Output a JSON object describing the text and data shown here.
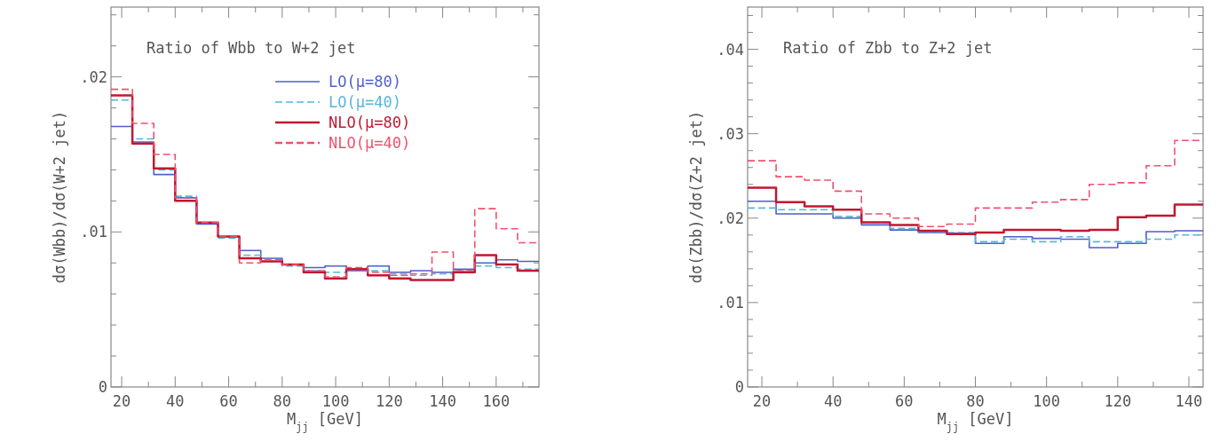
{
  "chart_data": [
    {
      "type": "histogram",
      "title": "Ratio of Wbb to W+2 jet",
      "xlabel": "M$_{jj}$ [GeV]",
      "ylabel": "dσ(Wbb)/dσ(W+2 jet)",
      "bins": [
        16,
        24,
        32,
        40,
        48,
        56,
        64,
        72,
        80,
        88,
        96,
        104,
        112,
        120,
        128,
        136,
        144,
        152,
        160,
        168,
        176
      ],
      "series": [
        {
          "name": "LO(μ=80)",
          "color": "#4f5fc8",
          "line_style": "solid",
          "values": [
            0.0168,
            0.0158,
            0.0137,
            0.0122,
            0.0105,
            0.0097,
            0.0088,
            0.0083,
            0.0079,
            0.0077,
            0.0078,
            0.0075,
            0.0078,
            0.0074,
            0.0075,
            0.0074,
            0.0076,
            0.008,
            0.0082,
            0.0081
          ]
        },
        {
          "name": "LO(μ=40)",
          "color": "#58b4dc",
          "line_style": "dashed",
          "values": [
            0.0185,
            0.016,
            0.014,
            0.0123,
            0.0106,
            0.0096,
            0.0085,
            0.0081,
            0.0078,
            0.0075,
            0.0074,
            0.0076,
            0.0075,
            0.0073,
            0.0072,
            0.0073,
            0.0075,
            0.0078,
            0.0077,
            0.0076
          ]
        },
        {
          "name": "NLO(μ=80)",
          "color": "#c01830",
          "line_style": "solid",
          "values": [
            0.0188,
            0.0157,
            0.0141,
            0.012,
            0.0106,
            0.0097,
            0.0083,
            0.0081,
            0.0079,
            0.0074,
            0.007,
            0.0076,
            0.0072,
            0.007,
            0.0069,
            0.0069,
            0.0074,
            0.0085,
            0.0079,
            0.0075
          ]
        },
        {
          "name": "NLO(μ=40)",
          "color": "#f0506e",
          "line_style": "dashed",
          "values": [
            0.0192,
            0.017,
            0.015,
            0.0122,
            0.0106,
            0.0097,
            0.008,
            0.0082,
            0.0079,
            0.0075,
            0.0071,
            0.0077,
            0.0074,
            0.0072,
            0.0073,
            0.0087,
            0.0075,
            0.0115,
            0.0102,
            0.0093
          ]
        }
      ],
      "xlim": [
        16,
        176
      ],
      "ylim": [
        0,
        0.0245
      ],
      "xticks": [
        20,
        {
          "value": 30,
          "label": null
        },
        40,
        {
          "value": 50,
          "label": null
        },
        60,
        {
          "value": 70,
          "label": null
        },
        80,
        {
          "value": 90,
          "label": null
        },
        100,
        {
          "value": 110,
          "label": null
        },
        120,
        {
          "value": 130,
          "label": null
        },
        140,
        {
          "value": 150,
          "label": null
        },
        160,
        {
          "value": 170,
          "label": null
        }
      ],
      "yticks": [
        0,
        {
          "value": 0.002,
          "label": null
        },
        {
          "value": 0.004,
          "label": null
        },
        {
          "value": 0.006,
          "label": null
        },
        {
          "value": 0.008,
          "label": null
        },
        {
          "value": 0.01,
          "label": ".01"
        },
        {
          "value": 0.012,
          "label": null
        },
        {
          "value": 0.014,
          "label": null
        },
        {
          "value": 0.016,
          "label": null
        },
        {
          "value": 0.018,
          "label": null
        },
        {
          "value": 0.02,
          "label": ".02"
        },
        {
          "value": 0.022,
          "label": null
        },
        {
          "value": 0.024,
          "label": null
        }
      ],
      "legend": "top right",
      "grid": false
    },
    {
      "type": "histogram",
      "title": "Ratio of Zbb to Z+2 jet",
      "xlabel": "M$_{jj}$ [GeV]",
      "ylabel": "dσ(Zbb)/dσ(Z+2 jet)",
      "bins": [
        16,
        24,
        32,
        40,
        48,
        56,
        64,
        72,
        80,
        88,
        96,
        104,
        112,
        120,
        128,
        136,
        144
      ],
      "series": [
        {
          "color": "#4f5fc8",
          "line_style": "solid",
          "values": [
            0.022,
            0.0205,
            0.0205,
            0.02,
            0.0192,
            0.0186,
            0.0183,
            0.0182,
            0.017,
            0.0178,
            0.0176,
            0.0175,
            0.0165,
            0.017,
            0.0184,
            0.0185
          ]
        },
        {
          "color": "#58b4dc",
          "line_style": "dashed",
          "values": [
            0.0212,
            0.021,
            0.021,
            0.0202,
            0.0195,
            0.0188,
            0.0184,
            0.0183,
            0.0172,
            0.0175,
            0.0172,
            0.0178,
            0.0172,
            0.0172,
            0.0175,
            0.018
          ]
        },
        {
          "color": "#c01830",
          "line_style": "solid",
          "values": [
            0.0236,
            0.0219,
            0.0214,
            0.021,
            0.0195,
            0.0192,
            0.0185,
            0.0181,
            0.0183,
            0.0186,
            0.0186,
            0.0185,
            0.0186,
            0.0201,
            0.0203,
            0.0216
          ]
        },
        {
          "color": "#f0506e",
          "line_style": "dashed",
          "values": [
            0.0268,
            0.0249,
            0.0245,
            0.0232,
            0.0205,
            0.02,
            0.019,
            0.0193,
            0.0212,
            0.0212,
            0.0219,
            0.0222,
            0.024,
            0.0242,
            0.0262,
            0.0292
          ]
        }
      ],
      "xlim": [
        16,
        144
      ],
      "ylim": [
        0,
        0.045
      ],
      "xticks": [
        20,
        {
          "value": 30,
          "label": null
        },
        40,
        {
          "value": 50,
          "label": null
        },
        60,
        {
          "value": 70,
          "label": null
        },
        80,
        {
          "value": 90,
          "label": null
        },
        100,
        {
          "value": 110,
          "label": null
        },
        120,
        {
          "value": 130,
          "label": null
        },
        140
      ],
      "yticks": [
        0,
        {
          "value": 0.002,
          "label": null
        },
        {
          "value": 0.004,
          "label": null
        },
        {
          "value": 0.006,
          "label": null
        },
        {
          "value": 0.008,
          "label": null
        },
        {
          "value": 0.01,
          "label": ".01"
        },
        {
          "value": 0.012,
          "label": null
        },
        {
          "value": 0.014,
          "label": null
        },
        {
          "value": 0.016,
          "label": null
        },
        {
          "value": 0.018,
          "label": null
        },
        {
          "value": 0.02,
          "label": ".02"
        },
        {
          "value": 0.022,
          "label": null
        },
        {
          "value": 0.024,
          "label": null
        },
        {
          "value": 0.026,
          "label": null
        },
        {
          "value": 0.028,
          "label": null
        },
        {
          "value": 0.03,
          "label": ".03"
        },
        {
          "value": 0.032,
          "label": null
        },
        {
          "value": 0.034,
          "label": null
        },
        {
          "value": 0.036,
          "label": null
        },
        {
          "value": 0.038,
          "label": null
        },
        {
          "value": 0.04,
          "label": ".04"
        },
        {
          "value": 0.042,
          "label": null
        },
        {
          "value": 0.044,
          "label": null
        }
      ],
      "legend": false,
      "grid": false
    }
  ]
}
